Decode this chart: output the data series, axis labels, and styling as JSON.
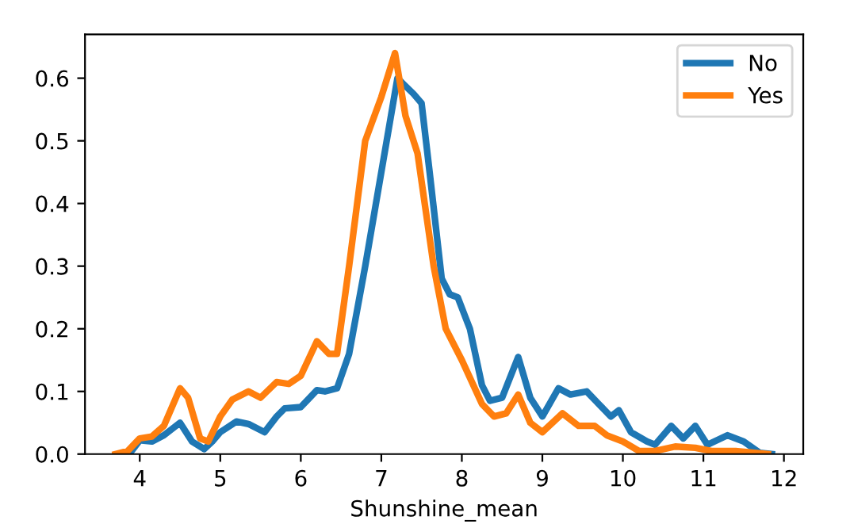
{
  "chart_data": {
    "type": "line",
    "xlabel": "Shunshine_mean",
    "xlim": [
      3.32,
      12.24
    ],
    "ylim": [
      0,
      0.67
    ],
    "xticks": [
      4,
      5,
      6,
      7,
      8,
      9,
      10,
      11,
      12
    ],
    "yticks": [
      {
        "value": 0,
        "label": "0.0"
      },
      0.1,
      0.2,
      0.3,
      0.4,
      0.5,
      0.6
    ],
    "grid": false,
    "legend": "top right",
    "marker": "none",
    "line_style": "solid",
    "series": [
      {
        "name": "No",
        "color": "#1f77b4",
        "x": [
          3.75,
          3.9,
          4.0,
          4.15,
          4.3,
          4.5,
          4.65,
          4.8,
          4.9,
          5.0,
          5.2,
          5.35,
          5.55,
          5.7,
          5.8,
          6.0,
          6.2,
          6.3,
          6.45,
          6.6,
          6.8,
          7.0,
          7.2,
          7.4,
          7.5,
          7.6,
          7.75,
          7.85,
          7.95,
          8.1,
          8.25,
          8.35,
          8.5,
          8.7,
          8.85,
          9.0,
          9.2,
          9.35,
          9.55,
          9.7,
          9.85,
          9.95,
          10.1,
          10.3,
          10.4,
          10.6,
          10.75,
          10.9,
          11.05,
          11.3,
          11.5,
          11.7,
          11.85
        ],
        "values": [
          0,
          0.005,
          0.022,
          0.02,
          0.03,
          0.05,
          0.02,
          0.008,
          0.02,
          0.035,
          0.052,
          0.048,
          0.035,
          0.06,
          0.073,
          0.075,
          0.102,
          0.1,
          0.105,
          0.16,
          0.3,
          0.45,
          0.6,
          0.575,
          0.56,
          0.45,
          0.28,
          0.255,
          0.25,
          0.2,
          0.11,
          0.085,
          0.09,
          0.155,
          0.09,
          0.06,
          0.105,
          0.095,
          0.1,
          0.08,
          0.06,
          0.07,
          0.035,
          0.02,
          0.015,
          0.045,
          0.025,
          0.045,
          0.015,
          0.03,
          0.02,
          0.002,
          0
        ]
      },
      {
        "name": "Yes",
        "color": "#ff7f0e",
        "x": [
          3.7,
          3.85,
          4.0,
          4.15,
          4.3,
          4.5,
          4.6,
          4.75,
          4.85,
          5.0,
          5.15,
          5.35,
          5.5,
          5.7,
          5.85,
          6.0,
          6.2,
          6.35,
          6.45,
          6.6,
          6.8,
          7.0,
          7.17,
          7.3,
          7.45,
          7.65,
          7.8,
          8.0,
          8.25,
          8.4,
          8.55,
          8.7,
          8.85,
          9.0,
          9.25,
          9.45,
          9.65,
          9.8,
          10.0,
          10.2,
          10.4,
          10.65,
          10.9,
          11.1,
          11.4,
          11.8
        ],
        "values": [
          0,
          0.005,
          0.025,
          0.028,
          0.045,
          0.105,
          0.09,
          0.025,
          0.02,
          0.06,
          0.087,
          0.1,
          0.09,
          0.115,
          0.112,
          0.125,
          0.18,
          0.16,
          0.16,
          0.3,
          0.5,
          0.57,
          0.64,
          0.54,
          0.48,
          0.3,
          0.2,
          0.15,
          0.08,
          0.06,
          0.065,
          0.095,
          0.05,
          0.035,
          0.065,
          0.045,
          0.045,
          0.03,
          0.02,
          0.005,
          0.005,
          0.012,
          0.01,
          0.005,
          0.005,
          0
        ]
      }
    ]
  }
}
